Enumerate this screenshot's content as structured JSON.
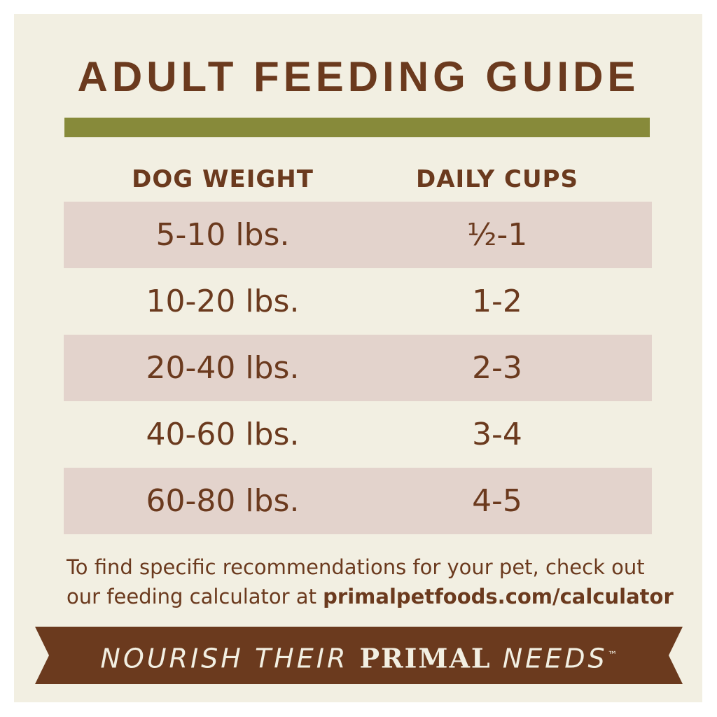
{
  "title": "ADULT FEEDING GUIDE",
  "table": {
    "headers": [
      "DOG WEIGHT",
      "DAILY CUPS"
    ],
    "rows": [
      [
        "5-10 lbs.",
        "½-1"
      ],
      [
        "10-20 lbs.",
        "1-2"
      ],
      [
        "20-40 lbs.",
        "2-3"
      ],
      [
        "40-60 lbs.",
        "3-4"
      ],
      [
        "60-80 lbs.",
        "4-5"
      ]
    ]
  },
  "footer": {
    "line1": "To find specific recommendations for your pet, check out",
    "line2": "our feeding calculator at",
    "link": "primalpetfoods.com/calculator"
  },
  "banner": {
    "lead": "NOURISH THEIR",
    "brand": "PRIMAL",
    "tail": "NEEDS",
    "mark": "™"
  }
}
